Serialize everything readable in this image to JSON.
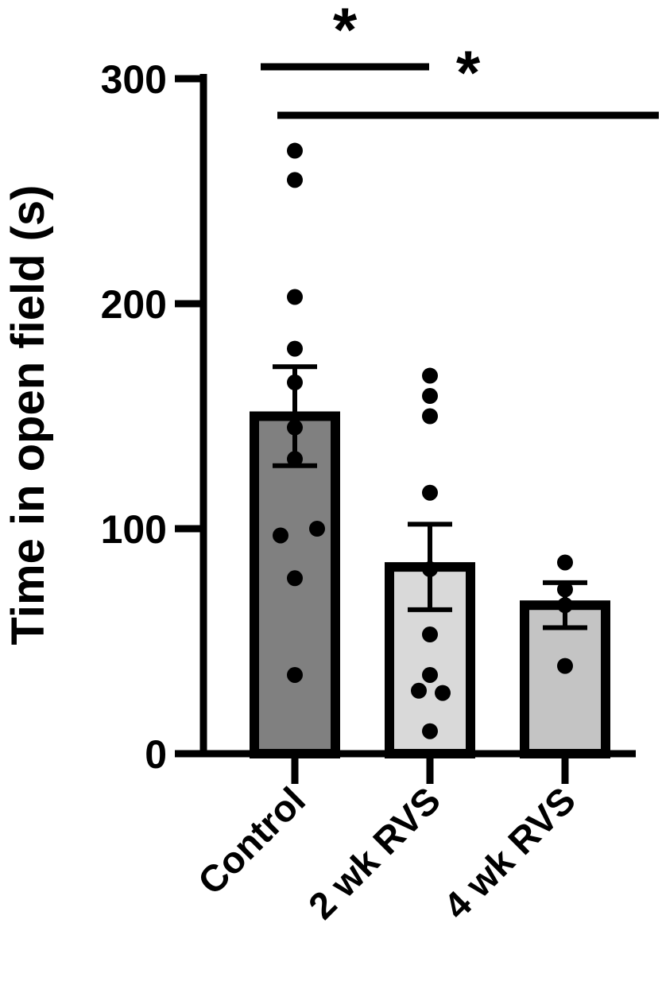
{
  "chart_data": {
    "type": "bar",
    "title": "",
    "xlabel": "",
    "ylabel": "Time in open field (s)",
    "ylim": [
      0,
      300
    ],
    "yticks": [
      0,
      100,
      200,
      300
    ],
    "grid": false,
    "categories": [
      "Control",
      "2 wk RVS",
      "4 wk RVS"
    ],
    "values": [
      150,
      83,
      66
    ],
    "error_bars": {
      "type": "sem",
      "values": [
        22,
        19,
        10
      ]
    },
    "points": [
      [
        268,
        255,
        203,
        180,
        165,
        145,
        131,
        100,
        97,
        78,
        35
      ],
      [
        168,
        159,
        150,
        116,
        82,
        53,
        35,
        28,
        27,
        10
      ],
      [
        85,
        73,
        66,
        39
      ]
    ],
    "significance": [
      {
        "from": "Control",
        "to": "2 wk RVS",
        "label": "*"
      },
      {
        "from": "Control",
        "to": "4 wk RVS",
        "label": "*"
      }
    ],
    "colors": {
      "bars": [
        "#808080",
        "#d9d9d9",
        "#c4c4c4"
      ],
      "outline": "#000000",
      "points": "#000000"
    }
  }
}
